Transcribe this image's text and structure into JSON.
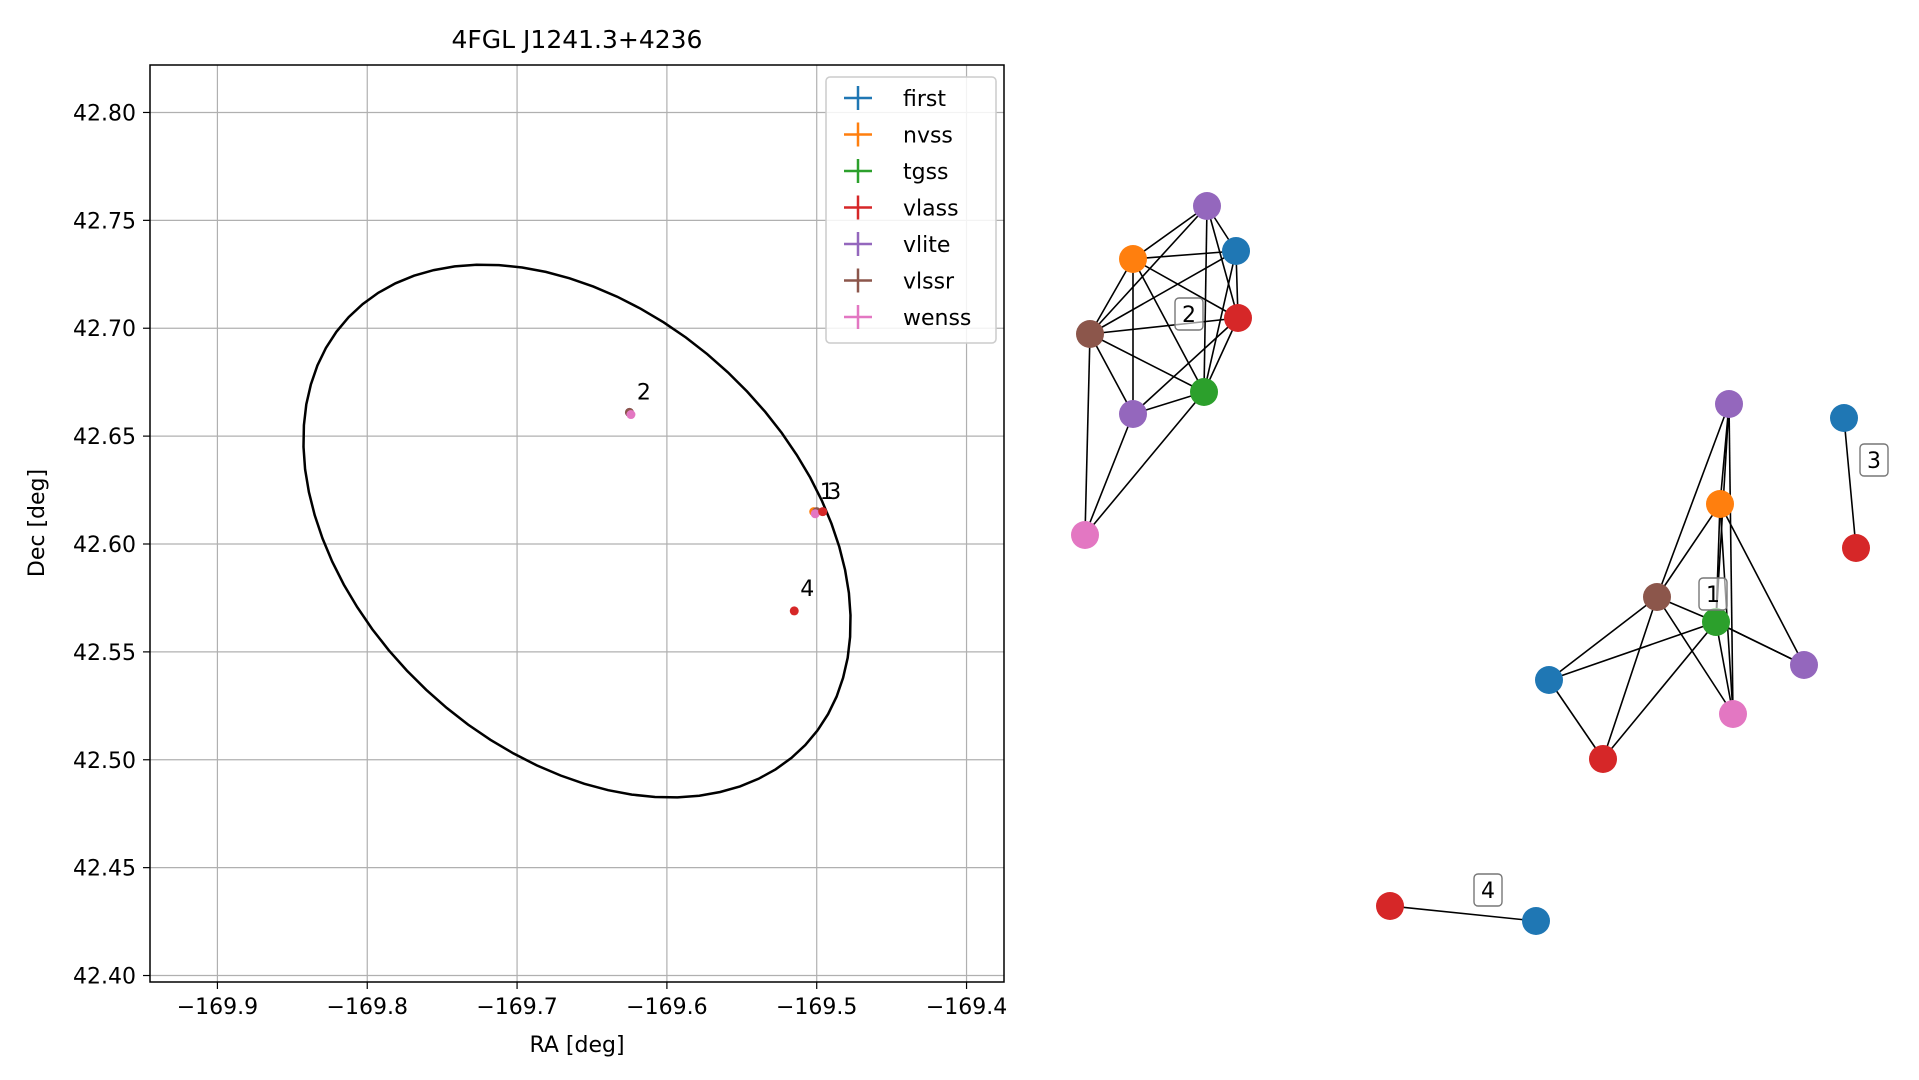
{
  "colors": {
    "first": "#1f77b4",
    "nvss": "#ff7f0e",
    "tgss": "#2ca02c",
    "vlass": "#d62728",
    "vlite": "#9467bd",
    "vlssr": "#8c564b",
    "wenss": "#e377c2"
  },
  "chart_data": [
    {
      "type": "scatter",
      "title": "4FGL J1241.3+4236",
      "xlabel": "RA [deg]",
      "ylabel": "Dec [deg]",
      "xlim": [
        -169.945,
        -169.375
      ],
      "ylim": [
        42.397,
        42.822
      ],
      "xticks": [
        -169.9,
        -169.8,
        -169.7,
        -169.6,
        -169.5,
        -169.4
      ],
      "xtick_labels": [
        "−169.9",
        "−169.8",
        "−169.7",
        "−169.6",
        "−169.5",
        "−169.4"
      ],
      "yticks": [
        42.4,
        42.45,
        42.5,
        42.55,
        42.6,
        42.65,
        42.7,
        42.75,
        42.8
      ],
      "ytick_labels": [
        "42.40",
        "42.45",
        "42.50",
        "42.55",
        "42.60",
        "42.65",
        "42.70",
        "42.75",
        "42.80"
      ],
      "grid": true,
      "legend_position": "top-right",
      "legend": [
        "first",
        "nvss",
        "tgss",
        "vlass",
        "vlite",
        "vlssr",
        "wenss"
      ],
      "ellipse": {
        "center": [
          -169.66,
          42.606
        ],
        "semi_major_deg": 0.15,
        "semi_minor_deg": 0.104,
        "angle_deg": -38
      },
      "points": [
        {
          "survey": "vlite",
          "ra": -169.625,
          "dec": 42.661
        },
        {
          "survey": "vlssr",
          "ra": -169.625,
          "dec": 42.661
        },
        {
          "survey": "wenss",
          "ra": -169.624,
          "dec": 42.66
        },
        {
          "survey": "nvss",
          "ra": -169.502,
          "dec": 42.615
        },
        {
          "survey": "vlssr",
          "ra": -169.5,
          "dec": 42.615
        },
        {
          "survey": "wenss",
          "ra": -169.501,
          "dec": 42.614
        },
        {
          "survey": "vlass",
          "ra": -169.496,
          "dec": 42.615
        },
        {
          "survey": "vlass",
          "ra": -169.515,
          "dec": 42.569
        }
      ],
      "cluster_labels": [
        {
          "text": "2",
          "ra": -169.62,
          "dec": 42.666
        },
        {
          "text": "1",
          "ra": -169.498,
          "dec": 42.62
        },
        {
          "text": "3",
          "ra": -169.493,
          "dec": 42.62
        },
        {
          "text": "4",
          "ra": -169.511,
          "dec": 42.575
        }
      ]
    },
    {
      "type": "network",
      "groups": [
        {
          "label": "2",
          "nodes": [
            "first",
            "nvss",
            "tgss",
            "vlass",
            "vlite",
            "vlssr",
            "vlite",
            "wenss"
          ]
        },
        {
          "label": "1",
          "nodes": [
            "vlite",
            "nvss",
            "vlssr",
            "tgss",
            "first",
            "vlite",
            "wenss",
            "vlass"
          ]
        },
        {
          "label": "3",
          "nodes": [
            "first",
            "vlass"
          ]
        },
        {
          "label": "4",
          "nodes": [
            "vlass",
            "first"
          ]
        }
      ]
    }
  ]
}
